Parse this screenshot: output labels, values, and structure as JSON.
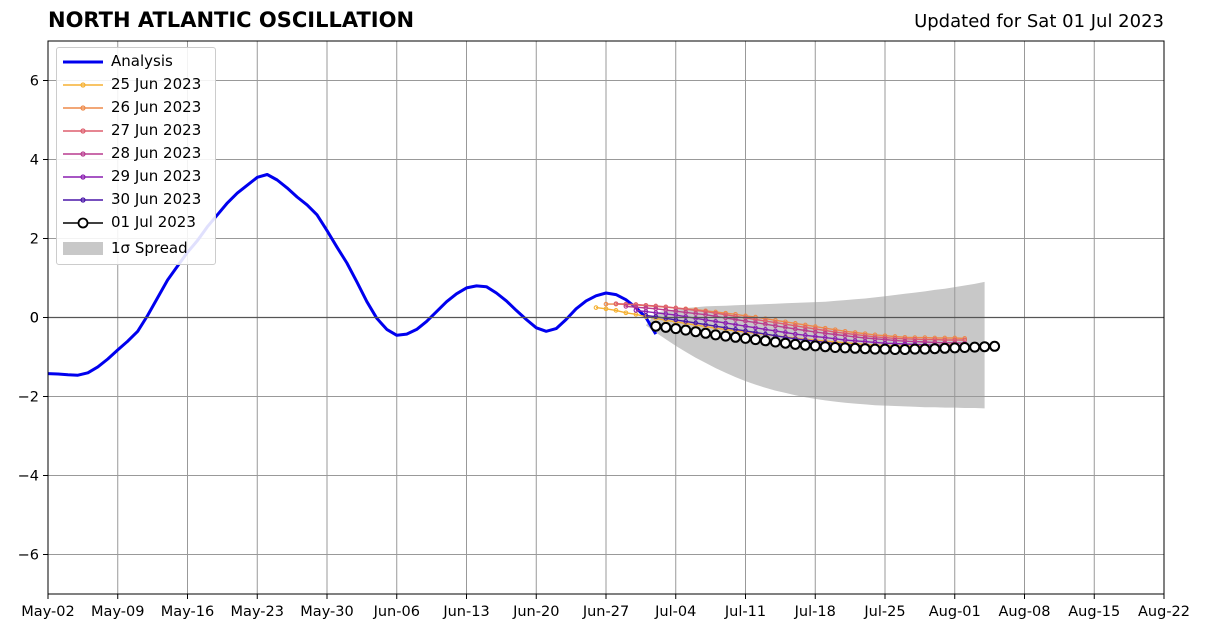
{
  "title": "NORTH ATLANTIC OSCILLATION",
  "subtitle": "Updated for Sat 01 Jul 2023",
  "chart_data": {
    "type": "line",
    "title": "NORTH ATLANTIC OSCILLATION",
    "xlabel": "",
    "ylabel": "",
    "x_range": [
      "2023-05-02",
      "2023-08-22"
    ],
    "ylim": [
      -7,
      7
    ],
    "x_ticks": [
      "May-02",
      "May-09",
      "May-16",
      "May-23",
      "May-30",
      "Jun-06",
      "Jun-13",
      "Jun-20",
      "Jun-27",
      "Jul-04",
      "Jul-11",
      "Jul-18",
      "Jul-25",
      "Aug-01",
      "Aug-08",
      "Aug-15",
      "Aug-22"
    ],
    "y_ticks": [
      6,
      4,
      2,
      0,
      -2,
      -4,
      -6
    ],
    "y_tick_labels": [
      "6",
      "4",
      "2",
      "0",
      "−2",
      "−4",
      "−6"
    ],
    "grid": true,
    "legend_position": "top-left",
    "zero_line": true,
    "series": [
      {
        "name": "Analysis",
        "color": "#0000ee",
        "marker": "none",
        "start_date": "2023-05-02",
        "values": [
          -1.42,
          -1.43,
          -1.45,
          -1.46,
          -1.4,
          -1.25,
          -1.05,
          -0.82,
          -0.6,
          -0.35,
          0.05,
          0.5,
          0.95,
          1.3,
          1.65,
          1.95,
          2.3,
          2.6,
          2.9,
          3.15,
          3.35,
          3.55,
          3.62,
          3.48,
          3.28,
          3.05,
          2.85,
          2.6,
          2.2,
          1.78,
          1.38,
          0.9,
          0.4,
          -0.02,
          -0.3,
          -0.45,
          -0.42,
          -0.3,
          -0.1,
          0.15,
          0.4,
          0.6,
          0.75,
          0.8,
          0.78,
          0.62,
          0.42,
          0.18,
          -0.05,
          -0.26,
          -0.35,
          -0.28,
          -0.05,
          0.22,
          0.42,
          0.55,
          0.62,
          0.58,
          0.45,
          0.25,
          0.0,
          -0.42
        ]
      },
      {
        "name": "25 Jun 2023",
        "color": "#f5b133",
        "marker": "small",
        "start_date": "2023-06-26",
        "values": [
          0.25,
          0.22,
          0.18,
          0.12,
          0.08,
          0.02,
          -0.02,
          -0.07,
          -0.11,
          -0.15,
          -0.19,
          -0.23,
          -0.27,
          -0.3,
          -0.34,
          -0.37,
          -0.4,
          -0.43,
          -0.46,
          -0.49,
          -0.52,
          -0.55,
          -0.57,
          -0.6,
          -0.62,
          -0.64,
          -0.66,
          -0.68,
          -0.7,
          -0.71,
          -0.72,
          -0.72,
          -0.72,
          -0.71,
          -0.7,
          -0.69,
          -0.68
        ]
      },
      {
        "name": "26 Jun 2023",
        "color": "#ee8a4a",
        "marker": "small",
        "start_date": "2023-06-27",
        "values": [
          0.34,
          0.34,
          0.33,
          0.32,
          0.3,
          0.28,
          0.26,
          0.24,
          0.22,
          0.2,
          0.17,
          0.14,
          0.11,
          0.08,
          0.04,
          0.01,
          -0.03,
          -0.07,
          -0.11,
          -0.15,
          -0.19,
          -0.23,
          -0.27,
          -0.31,
          -0.35,
          -0.38,
          -0.41,
          -0.44,
          -0.46,
          -0.48,
          -0.5,
          -0.51,
          -0.51,
          -0.52,
          -0.52,
          -0.52,
          -0.53
        ]
      },
      {
        "name": "27 Jun 2023",
        "color": "#dd5f6e",
        "marker": "small",
        "start_date": "2023-06-28",
        "values": [
          0.35,
          0.34,
          0.33,
          0.31,
          0.29,
          0.27,
          0.24,
          0.21,
          0.18,
          0.15,
          0.11,
          0.07,
          0.03,
          -0.01,
          -0.05,
          -0.09,
          -0.13,
          -0.17,
          -0.21,
          -0.25,
          -0.29,
          -0.33,
          -0.37,
          -0.4,
          -0.43,
          -0.46,
          -0.49,
          -0.51,
          -0.53,
          -0.54,
          -0.55,
          -0.56,
          -0.56,
          -0.57,
          -0.57,
          -0.57
        ]
      },
      {
        "name": "28 Jun 2023",
        "color": "#b93c8f",
        "marker": "small",
        "start_date": "2023-06-29",
        "values": [
          0.28,
          0.26,
          0.24,
          0.22,
          0.19,
          0.16,
          0.13,
          0.1,
          0.07,
          0.03,
          -0.01,
          -0.05,
          -0.09,
          -0.13,
          -0.17,
          -0.21,
          -0.25,
          -0.29,
          -0.33,
          -0.37,
          -0.4,
          -0.43,
          -0.46,
          -0.49,
          -0.52,
          -0.54,
          -0.56,
          -0.58,
          -0.6,
          -0.61,
          -0.62,
          -0.63,
          -0.64,
          -0.64,
          -0.65
        ]
      },
      {
        "name": "29 Jun 2023",
        "color": "#8a1fb0",
        "marker": "small",
        "start_date": "2023-06-30",
        "values": [
          0.18,
          0.15,
          0.12,
          0.09,
          0.06,
          0.02,
          -0.02,
          -0.06,
          -0.1,
          -0.14,
          -0.18,
          -0.22,
          -0.26,
          -0.3,
          -0.34,
          -0.38,
          -0.42,
          -0.45,
          -0.48,
          -0.51,
          -0.54,
          -0.57,
          -0.59,
          -0.61,
          -0.63,
          -0.65,
          -0.66,
          -0.67,
          -0.68,
          -0.69,
          -0.7,
          -0.7,
          -0.71,
          -0.71
        ]
      },
      {
        "name": "30 Jun 2023",
        "color": "#4a17a8",
        "marker": "small",
        "start_date": "2023-07-01",
        "values": [
          0.05,
          0.02,
          -0.02,
          -0.06,
          -0.1,
          -0.14,
          -0.18,
          -0.22,
          -0.26,
          -0.3,
          -0.34,
          -0.38,
          -0.42,
          -0.46,
          -0.5,
          -0.54,
          -0.57,
          -0.6,
          -0.63,
          -0.66,
          -0.68,
          -0.7,
          -0.72,
          -0.74,
          -0.75,
          -0.76,
          -0.77,
          -0.77,
          -0.78,
          -0.78,
          -0.78,
          -0.78,
          -0.78
        ]
      },
      {
        "name": "01 Jul 2023",
        "color": "#000000",
        "marker": "circle",
        "start_date": "2023-07-02",
        "values": [
          -0.22,
          -0.25,
          -0.28,
          -0.32,
          -0.36,
          -0.4,
          -0.44,
          -0.47,
          -0.5,
          -0.53,
          -0.56,
          -0.59,
          -0.62,
          -0.65,
          -0.68,
          -0.7,
          -0.72,
          -0.74,
          -0.76,
          -0.77,
          -0.78,
          -0.79,
          -0.8,
          -0.8,
          -0.81,
          -0.81,
          -0.8,
          -0.8,
          -0.79,
          -0.78,
          -0.77,
          -0.76,
          -0.75,
          -0.74,
          -0.73
        ]
      }
    ],
    "spread": {
      "name": "1σ Spread",
      "color": "#c8c8c8",
      "start_date": "2023-07-01",
      "upper": [
        -0.2,
        0.12,
        0.17,
        0.21,
        0.24,
        0.26,
        0.28,
        0.29,
        0.3,
        0.31,
        0.32,
        0.33,
        0.34,
        0.35,
        0.36,
        0.37,
        0.38,
        0.39,
        0.4,
        0.42,
        0.44,
        0.46,
        0.48,
        0.51,
        0.54,
        0.57,
        0.6,
        0.63,
        0.66,
        0.7,
        0.73,
        0.77,
        0.81,
        0.85,
        0.9
      ],
      "lower": [
        -0.2,
        -0.38,
        -0.55,
        -0.72,
        -0.87,
        -1.02,
        -1.15,
        -1.28,
        -1.4,
        -1.51,
        -1.61,
        -1.7,
        -1.78,
        -1.85,
        -1.91,
        -1.97,
        -2.02,
        -2.06,
        -2.1,
        -2.13,
        -2.16,
        -2.18,
        -2.2,
        -2.22,
        -2.23,
        -2.24,
        -2.25,
        -2.26,
        -2.27,
        -2.27,
        -2.28,
        -2.28,
        -2.29,
        -2.29,
        -2.3
      ]
    }
  },
  "legend": {
    "entries": [
      {
        "label": "Analysis"
      },
      {
        "label": "25 Jun 2023"
      },
      {
        "label": "26 Jun 2023"
      },
      {
        "label": "27 Jun 2023"
      },
      {
        "label": "28 Jun 2023"
      },
      {
        "label": "29 Jun 2023"
      },
      {
        "label": "30 Jun 2023"
      },
      {
        "label": "01 Jul 2023"
      },
      {
        "label": "1σ Spread"
      }
    ]
  }
}
